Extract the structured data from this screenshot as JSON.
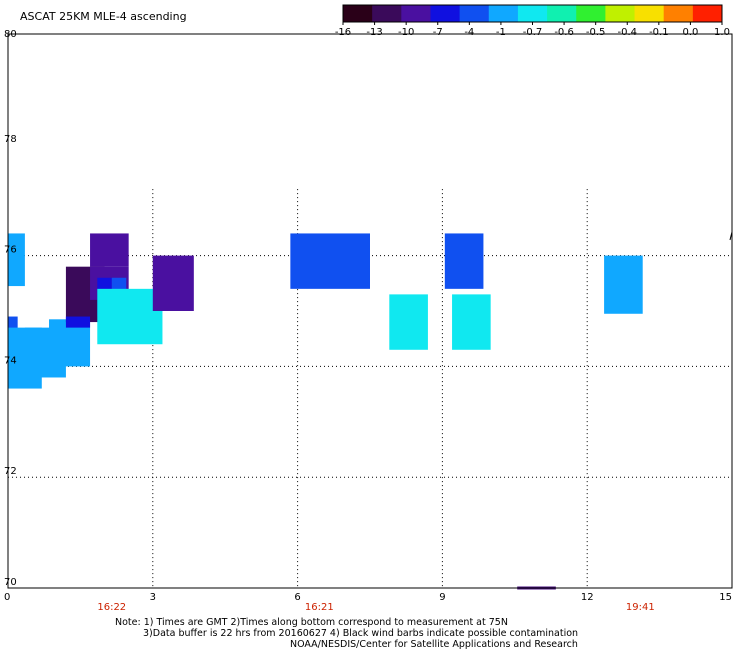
{
  "title": "ASCAT 25KM MLE-4 ascending",
  "colorbar": {
    "labels": [
      "-16",
      "-13",
      "-10",
      "-7",
      "-4",
      "-1",
      "-0.7",
      "-0.6",
      "-0.5",
      "-0.4",
      "-0.1",
      "0.0",
      "1.0"
    ],
    "colors": [
      "#2a0018",
      "#3a0a5a",
      "#4a10a0",
      "#1010e0",
      "#1050f0",
      "#10a8ff",
      "#10e8f0",
      "#10f0b0",
      "#30f030",
      "#c0f000",
      "#f8e000",
      "#ff8000",
      "#ff2000"
    ]
  },
  "notes": {
    "line1": "Note: 1) Times are GMT 2)Times along bottom correspond to measurement at 75N",
    "line2": "3)Data buffer is 22 hrs from 20160627 4) Black wind barbs indicate possible contamination",
    "line3": "NOAA/NESDIS/Center for Satellite Applications and Research"
  },
  "chart_data": {
    "type": "heatmap",
    "xlim": [
      0,
      15
    ],
    "ylim": [
      70,
      80
    ],
    "x_ticks": [
      "0",
      "3",
      "6",
      "9",
      "12",
      "15"
    ],
    "y_ticks": [
      "80",
      "78",
      "76",
      "74",
      "72",
      "70"
    ],
    "grid": true,
    "time_labels": [
      {
        "x": 2.15,
        "label": "16:22"
      },
      {
        "x": 6.45,
        "label": "16:21"
      },
      {
        "x": 13.1,
        "label": "19:41"
      }
    ],
    "cells": [
      {
        "x0": 0.0,
        "x1": 0.35,
        "y0": 75.45,
        "y1": 76.4,
        "color": "#10a8ff"
      },
      {
        "x0": 0.0,
        "x1": 0.2,
        "y0": 74.5,
        "y1": 74.9,
        "color": "#1050f0"
      },
      {
        "x0": 0.0,
        "x1": 0.7,
        "y0": 73.6,
        "y1": 74.7,
        "color": "#10a8ff"
      },
      {
        "x0": 0.35,
        "x1": 1.2,
        "y0": 73.8,
        "y1": 74.7,
        "color": "#10a8ff"
      },
      {
        "x0": 0.85,
        "x1": 1.7,
        "y0": 74.0,
        "y1": 74.85,
        "color": "#10a8ff"
      },
      {
        "x0": 1.2,
        "x1": 2.0,
        "y0": 74.8,
        "y1": 75.8,
        "color": "#3a0a5a"
      },
      {
        "x0": 1.7,
        "x1": 2.5,
        "y0": 75.8,
        "y1": 76.4,
        "color": "#4a10a0"
      },
      {
        "x0": 1.7,
        "x1": 2.5,
        "y0": 75.2,
        "y1": 75.8,
        "color": "#4a10a0"
      },
      {
        "x0": 1.2,
        "x1": 1.7,
        "y0": 74.7,
        "y1": 74.9,
        "color": "#1010e0"
      },
      {
        "x0": 1.85,
        "x1": 2.15,
        "y0": 74.9,
        "y1": 75.6,
        "color": "#1010e0"
      },
      {
        "x0": 2.15,
        "x1": 2.45,
        "y0": 74.9,
        "y1": 75.6,
        "color": "#1050f0"
      },
      {
        "x0": 1.85,
        "x1": 3.2,
        "y0": 74.4,
        "y1": 75.4,
        "color": "#10e8f0"
      },
      {
        "x0": 3.0,
        "x1": 3.85,
        "y0": 75.0,
        "y1": 76.0,
        "color": "#4a10a0"
      },
      {
        "x0": 5.85,
        "x1": 7.5,
        "y0": 75.4,
        "y1": 76.4,
        "color": "#1050f0"
      },
      {
        "x0": 7.9,
        "x1": 8.7,
        "y0": 74.3,
        "y1": 75.3,
        "color": "#10e8f0"
      },
      {
        "x0": 9.05,
        "x1": 9.85,
        "y0": 75.4,
        "y1": 76.4,
        "color": "#1050f0"
      },
      {
        "x0": 9.2,
        "x1": 10.0,
        "y0": 74.3,
        "y1": 75.3,
        "color": "#10e8f0"
      },
      {
        "x0": 12.35,
        "x1": 13.15,
        "y0": 74.95,
        "y1": 76.0,
        "color": "#10a8ff"
      }
    ],
    "markers": [
      {
        "x0": 10.55,
        "x1": 11.35,
        "y": 70.0,
        "color": "#4a1080"
      }
    ]
  }
}
